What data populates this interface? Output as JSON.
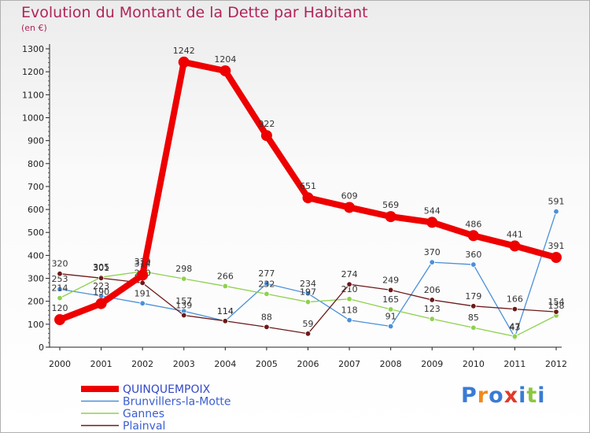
{
  "title": "Evolution du Montant de la Dette par Habitant",
  "subtitle": "(en €)",
  "logo": {
    "text": "Proxiti",
    "letter_colors": [
      "#3a7bd5",
      "#f08a1c",
      "#3a7bd5",
      "#e03a2a",
      "#3a7bd5",
      "#8cc63f",
      "#3a7bd5"
    ]
  },
  "chart_data": {
    "type": "line",
    "x": [
      2000,
      2001,
      2002,
      2003,
      2004,
      2005,
      2006,
      2007,
      2008,
      2009,
      2010,
      2011,
      2012
    ],
    "ylim": [
      0,
      1300
    ],
    "yticks": [
      0,
      100,
      200,
      300,
      400,
      500,
      600,
      700,
      800,
      900,
      1000,
      1100,
      1200,
      1300
    ],
    "grid": false,
    "legend_position": "bottom-left",
    "series": [
      {
        "name": "QUINQUEMPOIX",
        "color": "#ee0000",
        "highlight": true,
        "values": [
          120,
          190,
          314,
          1242,
          1204,
          922,
          651,
          609,
          569,
          544,
          486,
          441,
          391
        ]
      },
      {
        "name": "Brunvillers-la-Motte",
        "color": "#4a90d9",
        "highlight": false,
        "values": [
          253,
          223,
          191,
          157,
          114,
          277,
          234,
          118,
          91,
          370,
          360,
          43,
          591
        ]
      },
      {
        "name": "Gannes",
        "color": "#8fd14f",
        "highlight": false,
        "values": [
          214,
          305,
          330,
          298,
          266,
          232,
          197,
          210,
          165,
          123,
          85,
          47,
          138
        ]
      },
      {
        "name": "Plainval",
        "color": "#6b1a1a",
        "highlight": false,
        "values": [
          320,
          301,
          280,
          139,
          114,
          88,
          59,
          274,
          249,
          206,
          179,
          166,
          154
        ]
      }
    ]
  }
}
